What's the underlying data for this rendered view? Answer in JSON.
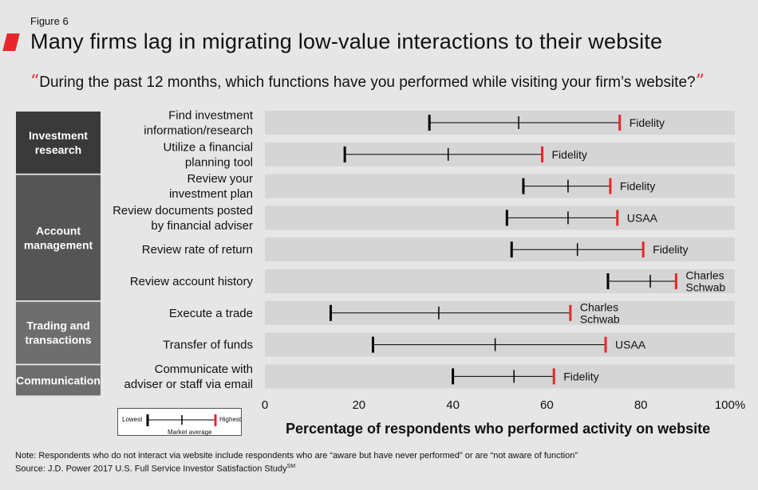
{
  "figure_label": "Figure 6",
  "title": "Many firms lag in migrating low-value interactions to their website",
  "question": "During the past 12 months, which functions have you performed while visiting your firm’s website?",
  "quote_open": "“",
  "quote_close": "”",
  "axis_title": "Percentage of respondents who performed activity on website",
  "legend": {
    "lowest": "Lowest",
    "highest": "Highest",
    "market_average": "Market average"
  },
  "note": "Note: Respondents who do not interact via website include respondents who are “aware but have never performed” or are “not aware of function”",
  "source": "Source: J.D. Power 2017 U.S. Full Service Investor Satisfaction Study",
  "source_sup": "SM",
  "colors": {
    "category_box": "#3a3a3a",
    "category_box_alt": "#555555",
    "category_box_light": "#6e6e6e",
    "row_bg": "#d5d5d5",
    "highest_marker": "#e8262b",
    "accent": "#e8262b"
  },
  "chart_data": {
    "type": "range",
    "xlim": [
      0,
      100
    ],
    "x_ticks": [
      "0",
      "20",
      "40",
      "60",
      "80",
      "100%"
    ],
    "groups": [
      {
        "name": "Investment research",
        "lines": [
          "Investment",
          "research"
        ]
      },
      {
        "name": "Account management",
        "lines": [
          "Account",
          "management"
        ]
      },
      {
        "name": "Trading and transactions",
        "lines": [
          "Trading and",
          "transactions"
        ]
      },
      {
        "name": "Communication",
        "lines": [
          "Communication"
        ]
      }
    ],
    "rows": [
      {
        "group": 0,
        "label": [
          "Find investment",
          "information/research"
        ],
        "low": 35,
        "avg": 54,
        "high": 75.5,
        "leader": [
          "Fidelity"
        ]
      },
      {
        "group": 0,
        "label": [
          "Utilize a financial",
          "planning tool"
        ],
        "low": 17,
        "avg": 39,
        "high": 59,
        "leader": [
          "Fidelity"
        ]
      },
      {
        "group": 1,
        "label": [
          "Review your",
          "investment plan"
        ],
        "low": 55,
        "avg": 64.5,
        "high": 73.5,
        "leader": [
          "Fidelity"
        ]
      },
      {
        "group": 1,
        "label": [
          "Review documents posted",
          "by financial adviser"
        ],
        "low": 51.5,
        "avg": 64.5,
        "high": 75,
        "leader": [
          "USAA"
        ]
      },
      {
        "group": 1,
        "label": [
          "Review rate of return"
        ],
        "low": 52.5,
        "avg": 66.5,
        "high": 80.5,
        "leader": [
          "Fidelity"
        ]
      },
      {
        "group": 1,
        "label": [
          "Review account history"
        ],
        "low": 73,
        "avg": 82,
        "high": 87.5,
        "leader": [
          "Charles",
          "Schwab"
        ]
      },
      {
        "group": 2,
        "label": [
          "Execute a trade"
        ],
        "low": 14,
        "avg": 37,
        "high": 65,
        "leader": [
          "Charles",
          "Schwab"
        ]
      },
      {
        "group": 2,
        "label": [
          "Transfer of funds"
        ],
        "low": 23,
        "avg": 49,
        "high": 72.5,
        "leader": [
          "USAA"
        ]
      },
      {
        "group": 3,
        "label": [
          "Communicate with",
          "adviser or staff via email"
        ],
        "low": 40,
        "avg": 53,
        "high": 61.5,
        "leader": [
          "Fidelity"
        ]
      }
    ]
  }
}
